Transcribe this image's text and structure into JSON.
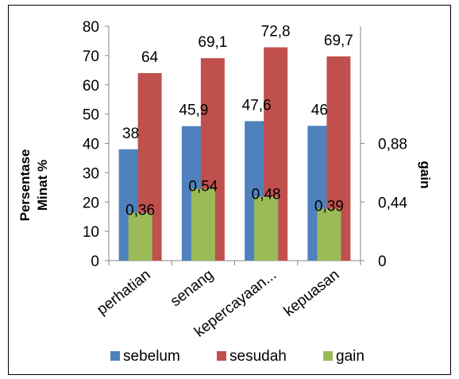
{
  "chart_data": {
    "type": "bar",
    "categories": [
      "perhatian",
      "senang",
      "kepercayaan...",
      "kepuasan"
    ],
    "series": [
      {
        "name": "sebelum",
        "axis": "primary",
        "color": "#4F81BD",
        "values": [
          38,
          45.9,
          47.6,
          46
        ],
        "labels": [
          "38",
          "45,9",
          "47,6",
          "46"
        ]
      },
      {
        "name": "sesudah",
        "axis": "primary",
        "color": "#C0504D",
        "values": [
          64,
          69.1,
          72.8,
          69.7
        ],
        "labels": [
          "64",
          "69,1",
          "72,8",
          "69,7"
        ]
      },
      {
        "name": "gain",
        "axis": "secondary",
        "color": "#9BBB59",
        "values": [
          0.36,
          0.54,
          0.48,
          0.39
        ],
        "labels": [
          "0,36",
          "0,54",
          "0,48",
          "0,39"
        ]
      }
    ],
    "ylabel_lines": [
      "Persentase",
      "Minat  %"
    ],
    "y2label": "gain",
    "ylim": [
      0,
      80
    ],
    "yticks": [
      "0",
      "10",
      "20",
      "30",
      "40",
      "50",
      "60",
      "70",
      "80"
    ],
    "y2lim": [
      0,
      1.76
    ],
    "y2ticks": [
      {
        "value": 0,
        "label": "0"
      },
      {
        "value": 0.44,
        "label": "0,44"
      },
      {
        "value": 0.88,
        "label": "0,88"
      }
    ],
    "legend_position": "bottom",
    "grid": false
  }
}
